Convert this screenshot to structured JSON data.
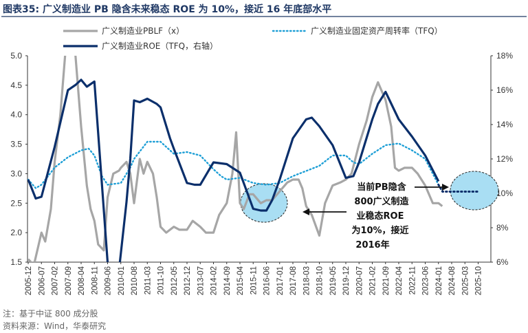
{
  "figure": {
    "title": "图表35:  广义制造业 PB 隐含未来稳态 ROE 为 10%，接近 16 年底部水平",
    "note": "注：基于中证 800 成分股",
    "source": "资料来源：Wind，华泰研究",
    "annotation": [
      "当前PB隐含",
      "800广义制造",
      "业稳态ROE",
      "为10%，接近",
      "2016年"
    ]
  },
  "colors": {
    "pb": "#a6a6a6",
    "roe": "#0b2f6b",
    "fixed_asset": "#1e9fd6",
    "circle_fill": "#a9def3",
    "title": "#1f3864"
  },
  "chart_data": {
    "type": "line",
    "x_tick_labels": [
      "2005-12",
      "2006-07",
      "2007-02",
      "2007-09",
      "2008-04",
      "2008-11",
      "2009-06",
      "2010-01",
      "2010-08",
      "2011-03",
      "2011-10",
      "2012-05",
      "2012-12",
      "2013-07",
      "2014-02",
      "2014-09",
      "2015-04",
      "2015-11",
      "2016-06",
      "2017-01",
      "2017-08",
      "2018-03",
      "2018-10",
      "2019-05",
      "2019-12",
      "2020-07",
      "2021-02",
      "2021-09",
      "2022-04",
      "2022-11",
      "2023-06",
      "2024-01",
      "2024-08",
      "2025-03",
      "2025-10"
    ],
    "left_axis": {
      "ylim": [
        1.5,
        5.0
      ],
      "ticks": [
        "1.5",
        "2.0",
        "2.5",
        "3.0",
        "3.5",
        "4.0",
        "4.5",
        "5.0"
      ]
    },
    "right_axis": {
      "ylim": [
        6,
        18
      ],
      "ticks": [
        "6%",
        "8%",
        "10%",
        "12%",
        "14%",
        "16%",
        "18%"
      ]
    },
    "series": [
      {
        "name": "广义制造业PBLF（x）",
        "axis": "left",
        "style": "solid-gray",
        "x": [
          "2005-12",
          "2006-03",
          "2006-07",
          "2006-09",
          "2006-12",
          "2007-02",
          "2007-05",
          "2007-07",
          "2007-09",
          "2007-11",
          "2008-01",
          "2008-04",
          "2008-07",
          "2008-09",
          "2008-11",
          "2009-01",
          "2009-04",
          "2009-06",
          "2009-09",
          "2009-12",
          "2010-01",
          "2010-04",
          "2010-06",
          "2010-08",
          "2010-11",
          "2011-01",
          "2011-03",
          "2011-06",
          "2011-08",
          "2011-10",
          "2012-01",
          "2012-05",
          "2012-08",
          "2012-12",
          "2013-03",
          "2013-07",
          "2013-10",
          "2014-02",
          "2014-05",
          "2014-09",
          "2014-12",
          "2015-02",
          "2015-04",
          "2015-06",
          "2015-09",
          "2015-11",
          "2016-03",
          "2016-06",
          "2016-09",
          "2017-01",
          "2017-05",
          "2017-08",
          "2017-11",
          "2018-01",
          "2018-03",
          "2018-06",
          "2018-10",
          "2019-01",
          "2019-03",
          "2019-05",
          "2019-09",
          "2019-12",
          "2020-03",
          "2020-07",
          "2020-11",
          "2021-02",
          "2021-05",
          "2021-09",
          "2021-12",
          "2022-02",
          "2022-04",
          "2022-07",
          "2022-11",
          "2023-02",
          "2023-06",
          "2023-10",
          "2024-01",
          "2024-03"
        ],
        "values": [
          1.55,
          1.45,
          2.0,
          1.85,
          2.4,
          3.2,
          4.0,
          4.8,
          5.6,
          5.4,
          5.0,
          3.8,
          2.8,
          2.4,
          2.2,
          1.8,
          1.7,
          2.6,
          3.0,
          3.05,
          3.1,
          3.2,
          3.0,
          2.5,
          3.25,
          3.0,
          3.2,
          3.0,
          2.6,
          2.1,
          2.0,
          2.1,
          2.05,
          2.05,
          2.2,
          2.1,
          2.0,
          2.0,
          2.3,
          2.5,
          3.0,
          3.7,
          2.5,
          2.4,
          2.65,
          2.65,
          2.5,
          2.55,
          2.55,
          2.7,
          2.85,
          2.9,
          2.9,
          2.75,
          2.45,
          2.3,
          1.95,
          2.5,
          2.65,
          2.8,
          2.85,
          2.9,
          3.0,
          3.5,
          3.9,
          4.3,
          4.55,
          4.25,
          3.8,
          3.1,
          3.05,
          3.1,
          3.1,
          3.0,
          2.8,
          2.5,
          2.5,
          2.45
        ],
        "clip_bottom": true,
        "clip_top": true
      },
      {
        "name": "广义制造业固定资产周转率（TFQ）",
        "axis": "right",
        "style": "dotted-blue",
        "x": [
          "2005-12",
          "2006-04",
          "2006-07",
          "2007-02",
          "2007-09",
          "2008-04",
          "2008-08",
          "2008-11",
          "2009-03",
          "2009-06",
          "2010-01",
          "2010-06",
          "2010-08",
          "2011-03",
          "2011-08",
          "2011-10",
          "2012-03",
          "2012-05",
          "2012-12",
          "2013-07",
          "2014-02",
          "2014-06",
          "2014-09",
          "2015-04",
          "2015-11",
          "2016-06",
          "2017-01",
          "2017-08",
          "2018-03",
          "2018-10",
          "2019-05",
          "2019-12",
          "2020-04",
          "2020-07",
          "2021-02",
          "2021-09",
          "2022-04",
          "2022-11",
          "2023-06",
          "2024-01"
        ],
        "values": [
          10.8,
          10.3,
          10.5,
          11.5,
          12.1,
          12.5,
          12.6,
          12.2,
          11.0,
          10.5,
          10.6,
          11.5,
          12.0,
          13.0,
          13.0,
          13.0,
          12.5,
          12.3,
          12.4,
          12.2,
          11.4,
          11.0,
          10.8,
          10.9,
          10.6,
          10.5,
          10.6,
          11.0,
          11.3,
          11.6,
          12.2,
          12.2,
          11.8,
          11.7,
          12.3,
          12.8,
          12.9,
          12.5,
          12.0,
          10.5
        ],
        "future_dots": {
          "x": [
            "2024-08",
            "2025-03",
            "2025-10"
          ],
          "value": 10.1
        }
      },
      {
        "name": "广义制造业ROE（TFQ，右轴）",
        "axis": "right",
        "style": "solid-navy",
        "x": [
          "2005-12",
          "2006-04",
          "2006-07",
          "2007-02",
          "2007-09",
          "2008-01",
          "2008-04",
          "2008-07",
          "2008-11",
          "2009-03",
          "2009-06",
          "2009-09",
          "2009-12",
          "2010-04",
          "2010-06",
          "2010-08",
          "2010-11",
          "2011-03",
          "2011-08",
          "2011-10",
          "2012-03",
          "2012-05",
          "2012-12",
          "2013-04",
          "2013-07",
          "2014-02",
          "2014-09",
          "2015-04",
          "2015-11",
          "2016-03",
          "2016-06",
          "2016-09",
          "2017-01",
          "2017-08",
          "2018-03",
          "2018-06",
          "2018-10",
          "2019-05",
          "2019-12",
          "2020-04",
          "2020-07",
          "2021-02",
          "2021-05",
          "2021-09",
          "2022-04",
          "2022-11",
          "2023-06",
          "2024-01"
        ],
        "values": [
          10.8,
          9.7,
          9.8,
          12.7,
          16.0,
          16.3,
          16.6,
          16.2,
          16.5,
          10.5,
          6.0,
          4.0,
          5.5,
          9.5,
          12.0,
          15.4,
          15.3,
          15.5,
          15.2,
          15.0,
          13.2,
          12.6,
          10.6,
          10.5,
          10.5,
          11.8,
          11.7,
          11.2,
          9.1,
          9.0,
          9.0,
          9.6,
          10.8,
          13.2,
          14.3,
          14.4,
          13.9,
          12.8,
          10.9,
          11.0,
          11.8,
          14.3,
          15.2,
          15.9,
          14.3,
          13.3,
          12.2,
          10.7
        ]
      }
    ]
  }
}
